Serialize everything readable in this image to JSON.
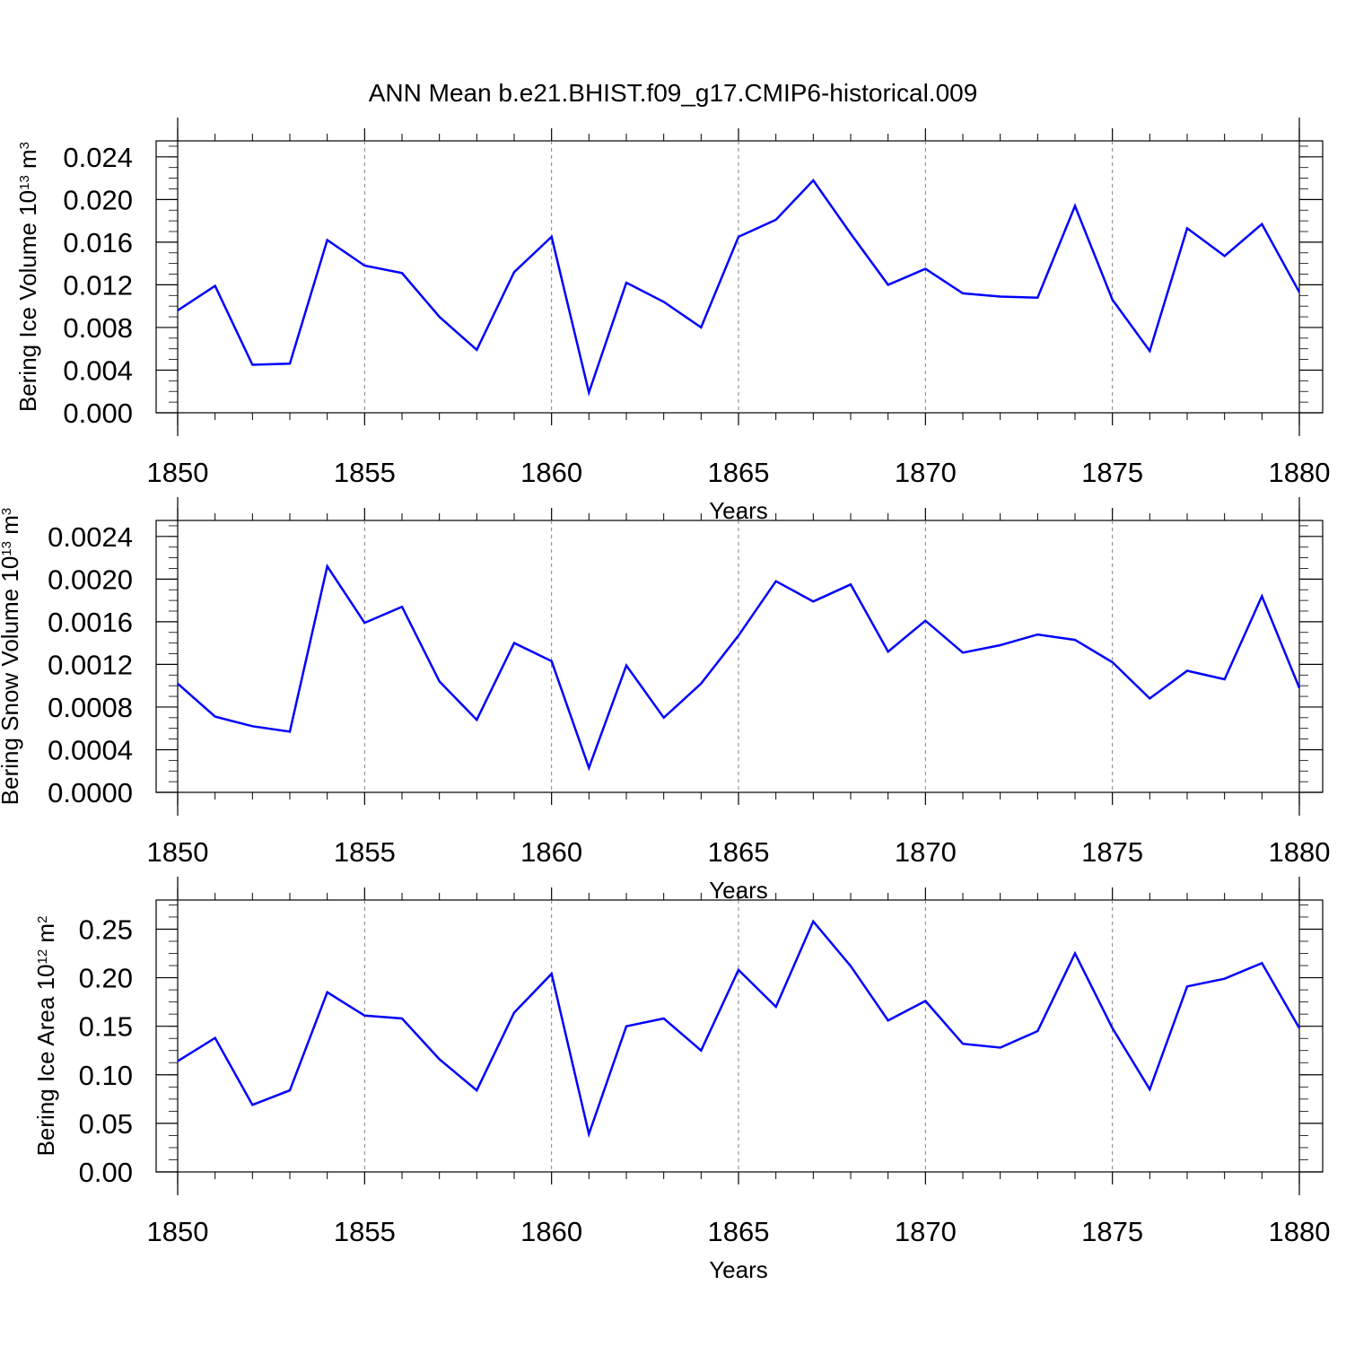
{
  "title": "ANN Mean b.e21.BHIST.f09_g17.CMIP6-historical.009",
  "colors": {
    "line": "#0000ff",
    "axis": "#000000",
    "grid": "#808080"
  },
  "chart_data": [
    {
      "type": "line",
      "title": "",
      "xlabel": "Years",
      "ylabel": "Bering Ice Volume 10",
      "ylabel_exp": "13",
      "ylabel_unit": " m",
      "ylabel_unit_exp": "3",
      "xlim": [
        1850,
        1880
      ],
      "ylim": [
        0.0,
        0.0255
      ],
      "xticks": [
        "1850",
        "1855",
        "1860",
        "1865",
        "1870",
        "1875",
        "1880"
      ],
      "yticks": [
        "0.000",
        "0.004",
        "0.008",
        "0.012",
        "0.016",
        "0.020",
        "0.024"
      ],
      "grid": "vertical-dashed",
      "series": [
        {
          "x": [
            1850,
            1851,
            1852,
            1853,
            1854,
            1855,
            1856,
            1857,
            1858,
            1859,
            1860,
            1861,
            1862,
            1863,
            1864,
            1865,
            1866,
            1867,
            1868,
            1869,
            1870,
            1871,
            1872,
            1873,
            1874,
            1875,
            1876,
            1877,
            1878,
            1879,
            1880
          ],
          "values": [
            0.0096,
            0.0119,
            0.0045,
            0.0046,
            0.0162,
            0.0138,
            0.0131,
            0.009,
            0.0059,
            0.0132,
            0.0165,
            0.0019,
            0.0122,
            0.0104,
            0.008,
            0.0165,
            0.0181,
            0.0218,
            0.0168,
            0.012,
            0.0135,
            0.0112,
            0.0109,
            0.0108,
            0.0194,
            0.0106,
            0.0058,
            0.0173,
            0.0147,
            0.0177,
            0.0113
          ]
        }
      ]
    },
    {
      "type": "line",
      "title": "",
      "xlabel": "Years",
      "ylabel": "Bering Snow Volume 10",
      "ylabel_exp": "13",
      "ylabel_unit": " m",
      "ylabel_unit_exp": "3",
      "xlim": [
        1850,
        1880
      ],
      "ylim": [
        0.0,
        0.00255
      ],
      "xticks": [
        "1850",
        "1855",
        "1860",
        "1865",
        "1870",
        "1875",
        "1880"
      ],
      "yticks": [
        "0.0000",
        "0.0004",
        "0.0008",
        "0.0012",
        "0.0016",
        "0.0020",
        "0.0024"
      ],
      "grid": "vertical-dashed",
      "series": [
        {
          "x": [
            1850,
            1851,
            1852,
            1853,
            1854,
            1855,
            1856,
            1857,
            1858,
            1859,
            1860,
            1861,
            1862,
            1863,
            1864,
            1865,
            1866,
            1867,
            1868,
            1869,
            1870,
            1871,
            1872,
            1873,
            1874,
            1875,
            1876,
            1877,
            1878,
            1879,
            1880
          ],
          "values": [
            0.00102,
            0.00071,
            0.00062,
            0.00057,
            0.00212,
            0.00159,
            0.00174,
            0.00104,
            0.00068,
            0.0014,
            0.00123,
            0.00023,
            0.00119,
            0.0007,
            0.00102,
            0.00147,
            0.00198,
            0.00179,
            0.00195,
            0.00132,
            0.00161,
            0.00131,
            0.00138,
            0.00148,
            0.00143,
            0.00122,
            0.00088,
            0.00114,
            0.00106,
            0.00184,
            0.00098
          ]
        }
      ]
    },
    {
      "type": "line",
      "title": "",
      "xlabel": "Years",
      "ylabel": "Bering Ice Area 10",
      "ylabel_exp": "12",
      "ylabel_unit": " m",
      "ylabel_unit_exp": "2",
      "xlim": [
        1850,
        1880
      ],
      "ylim": [
        0.0,
        0.28
      ],
      "xticks": [
        "1850",
        "1855",
        "1860",
        "1865",
        "1870",
        "1875",
        "1880"
      ],
      "yticks": [
        "0.00",
        "0.05",
        "0.10",
        "0.15",
        "0.20",
        "0.25"
      ],
      "grid": "vertical-dashed",
      "series": [
        {
          "x": [
            1850,
            1851,
            1852,
            1853,
            1854,
            1855,
            1856,
            1857,
            1858,
            1859,
            1860,
            1861,
            1862,
            1863,
            1864,
            1865,
            1866,
            1867,
            1868,
            1869,
            1870,
            1871,
            1872,
            1873,
            1874,
            1875,
            1876,
            1877,
            1878,
            1879,
            1880
          ],
          "values": [
            0.114,
            0.138,
            0.069,
            0.084,
            0.185,
            0.161,
            0.158,
            0.116,
            0.084,
            0.164,
            0.204,
            0.039,
            0.15,
            0.158,
            0.125,
            0.208,
            0.17,
            0.258,
            0.212,
            0.156,
            0.176,
            0.132,
            0.128,
            0.145,
            0.225,
            0.148,
            0.085,
            0.191,
            0.199,
            0.215,
            0.148
          ]
        }
      ]
    }
  ]
}
